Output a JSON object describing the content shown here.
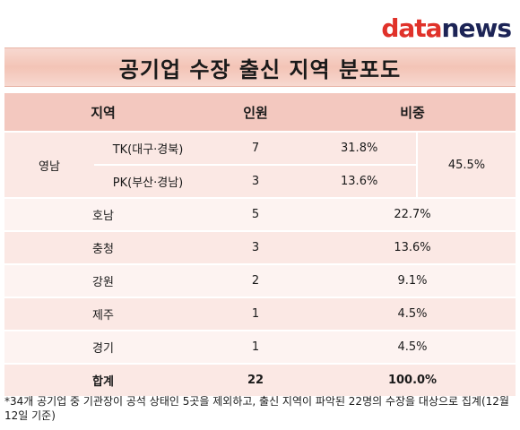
{
  "logo": {
    "part1": "data",
    "part2": "news"
  },
  "title": "공기업 수장 출신 지역 분포도",
  "headers": {
    "region": "지역",
    "count": "인원",
    "share": "비중"
  },
  "yeongnam": {
    "label": "영남",
    "total_share": "45.5%",
    "sub": [
      {
        "label": "TK(대구·경북)",
        "count": "7",
        "share": "31.8%"
      },
      {
        "label": "PK(부산·경남)",
        "count": "3",
        "share": "13.6%"
      }
    ]
  },
  "rows": [
    {
      "region": "호남",
      "count": "5",
      "share": "22.7%"
    },
    {
      "region": "충청",
      "count": "3",
      "share": "13.6%"
    },
    {
      "region": "강원",
      "count": "2",
      "share": "9.1%"
    },
    {
      "region": "제주",
      "count": "1",
      "share": "4.5%"
    },
    {
      "region": "경기",
      "count": "1",
      "share": "4.5%"
    }
  ],
  "total": {
    "label": "합계",
    "count": "22",
    "share": "100.0%"
  },
  "footnote": "*34개 공기업 중 기관장이 공석 상태인 5곳을 제외하고, 출신 지역이 파악된 22명의 수장을 대상으로 집계(12월12일 기준)"
}
